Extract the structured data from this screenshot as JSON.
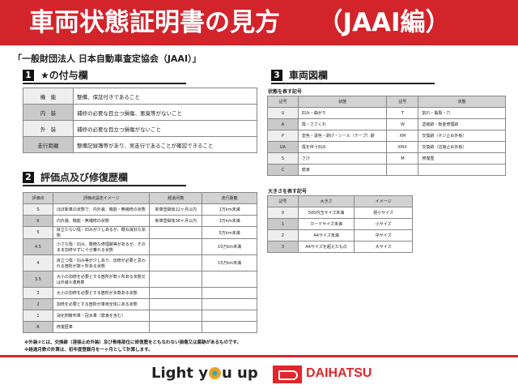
{
  "header": {
    "title": "車両状態証明書の見方　　（JAAI編）"
  },
  "organization": "「一般財団法人 日本自動車査定協会（JAAI）」",
  "section1": {
    "num": "1",
    "title": "★の付与欄",
    "rows": [
      {
        "key": "機　能",
        "value": "整備、保証付きであること"
      },
      {
        "key": "内　装",
        "value": "補修の必要な目立つ損傷、悪臭等がないこと"
      },
      {
        "key": "外　装",
        "value": "補修の必要な目立つ損傷がないこと"
      },
      {
        "key": "走行距離",
        "value": "整備記録簿等があり、実走行であることが確認できること"
      }
    ]
  },
  "section2": {
    "num": "2",
    "title": "評価点及び修復歴欄",
    "headers": [
      "評価点",
      "評価点設定イメージ",
      "経過月数",
      "走行距離"
    ],
    "rows": [
      [
        "S",
        "ほぼ新車の状態で、内外装、機能・無補修の状態",
        "新車登録後12ヶ月以内",
        "1万km未満"
      ],
      [
        "6",
        "内外装、機能・無補修の状態",
        "新車登録後36ヶ月以内",
        "3万km未満"
      ],
      [
        "5",
        "目立たない傷・凹みが少しあるが、概ね良好な状態",
        "",
        "5万km未満"
      ],
      [
        "4.5",
        "小さな傷・凹み、軽微な修理跡等があるが、そのまま加修せずに十分乗れる状態",
        "",
        "10万km未満"
      ],
      [
        "4",
        "目立つ傷・凹み等が少しあり、加修が必要と思われる箇所が数ヶ所ある状態",
        "",
        "15万km未満"
      ],
      [
        "3.5",
        "大小の加修を必要とする箇所が数ヶ所ある状態又は外装②適用車",
        "",
        ""
      ],
      [
        "3",
        "大小の加修を必要とする箇所が多数ある状態",
        "",
        ""
      ],
      [
        "2",
        "加修を必要とする箇所が車両全体にある状態",
        "",
        ""
      ],
      [
        "1",
        "消化剤散布車・冠水車（腐食を含む）",
        "",
        ""
      ],
      [
        "R",
        "修復歴車",
        "",
        ""
      ]
    ]
  },
  "notes": [
    "※外装②とは、交換跡（溶接止め外装）及び骨格部位に修復歴をともなわない損傷又は腐跡があるものです。",
    "※経過月数の計算は、初年度登録月を一ヶ月として計算します。"
  ],
  "section3": {
    "num": "3",
    "title": "車両図欄",
    "state_label": "状態を表す記号",
    "state_headers": [
      "記号",
      "状態",
      "記号",
      "状態"
    ],
    "state_rows": [
      [
        "U",
        "凹み・曲がり",
        "T",
        "割れ・亀裂・穴"
      ],
      [
        "A",
        "傷・ささくれ",
        "W",
        "塗装跡・板金修理跡"
      ],
      [
        "P",
        "変色・退色・剥げ・シール（テープ）跡",
        "XM",
        "交換跡（ネジ止め外板）"
      ],
      [
        "UA",
        "傷を伴う凹み",
        "XM②",
        "交換跡（溶接止め外板）"
      ],
      [
        "S",
        "さび",
        "M",
        "修復歴"
      ],
      [
        "C",
        "腐食",
        "",
        ""
      ]
    ],
    "size_label": "大きさを表す記号",
    "size_headers": [
      "記号",
      "大きさ",
      "イメージ"
    ],
    "size_rows": [
      [
        "0",
        "500円玉サイズ未満",
        "極小サイズ"
      ],
      [
        "1",
        "カードサイズ未満",
        "小サイズ"
      ],
      [
        "2",
        "A4サイズ未満",
        "中サイズ"
      ],
      [
        "3",
        "A4サイズを超えたもの",
        "大サイズ"
      ]
    ]
  },
  "footer": {
    "slogan_pre": "Light y",
    "slogan_post": "u up",
    "brand": "DAIHATSU",
    "brand_color": "#e3262b"
  }
}
